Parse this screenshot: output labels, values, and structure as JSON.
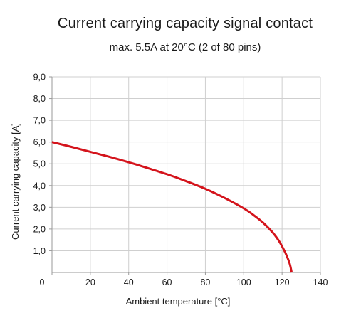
{
  "chart_data": {
    "type": "line",
    "title": "Current carrying capacity signal contact",
    "subtitle": "max. 5.5A at 20°C (2 of 80 pins)",
    "xlabel": "Ambient temperature [°C]",
    "ylabel": "Current carrying capacity [A]",
    "xlim": [
      0,
      140
    ],
    "ylim": [
      0,
      9
    ],
    "x_ticks": [
      0,
      20,
      40,
      60,
      80,
      100,
      120,
      140
    ],
    "x_tick_labels": [
      "0",
      "20",
      "40",
      "60",
      "80",
      "100",
      "120",
      "140"
    ],
    "y_ticks": [
      1,
      2,
      3,
      4,
      5,
      6,
      7,
      8,
      9
    ],
    "y_tick_labels": [
      "1,0",
      "2,0",
      "3,0",
      "4,0",
      "5,0",
      "6,0",
      "7,0",
      "8,0",
      "9,0"
    ],
    "grid": true,
    "series": [
      {
        "color": "#d4141c",
        "x": [
          0,
          10,
          20,
          30,
          40,
          50,
          60,
          70,
          80,
          90,
          100,
          105,
          110,
          115,
          118,
          120,
          122,
          124,
          125
        ],
        "y": [
          6.0,
          5.78,
          5.55,
          5.32,
          5.07,
          4.8,
          4.52,
          4.2,
          3.85,
          3.43,
          2.95,
          2.65,
          2.3,
          1.85,
          1.5,
          1.2,
          0.85,
          0.4,
          0.0
        ]
      }
    ]
  }
}
